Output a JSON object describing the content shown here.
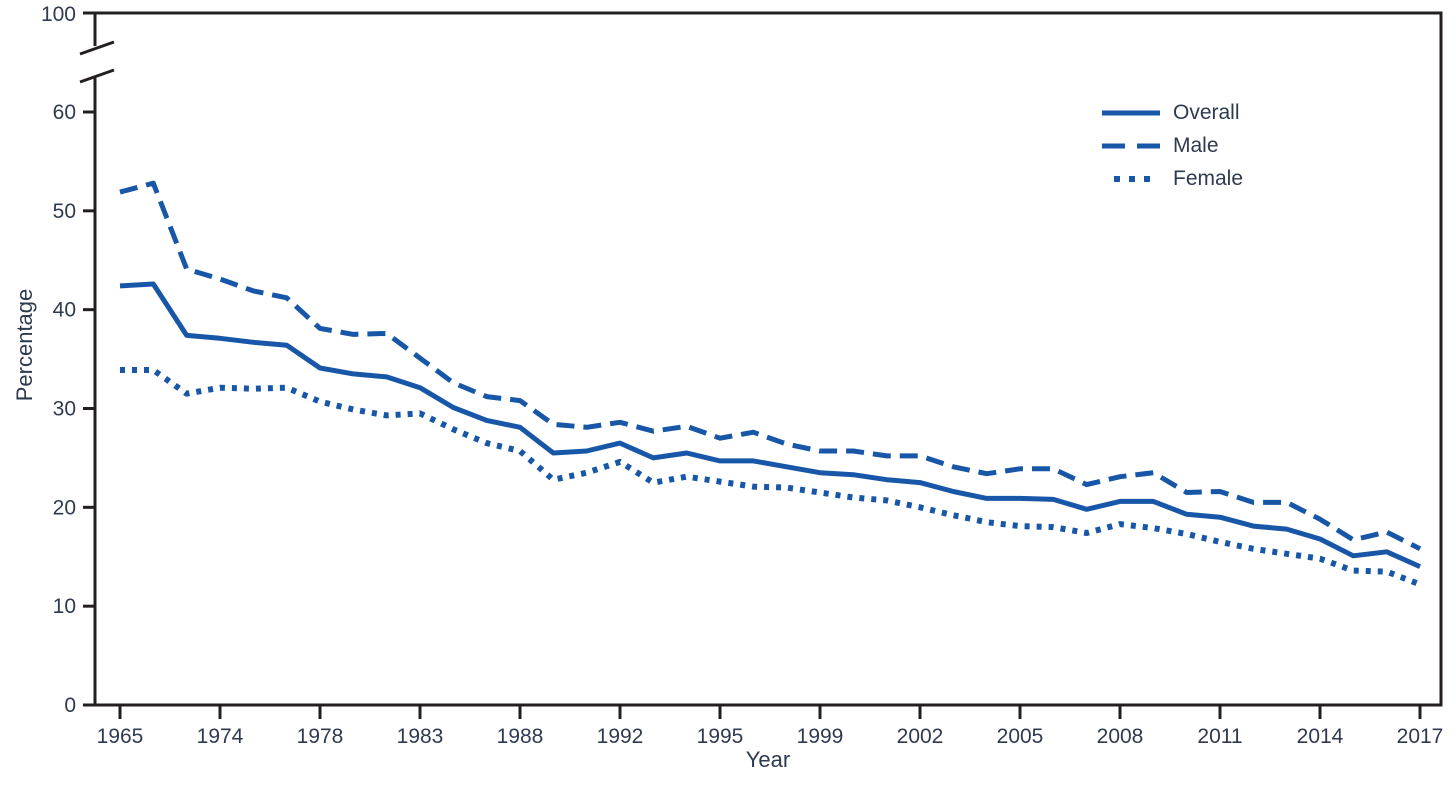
{
  "chart_data": {
    "type": "line",
    "title": "",
    "xlabel": "Year",
    "ylabel": "Percentage",
    "grid": false,
    "legend_position": "upper-right-inside",
    "ylim": [
      0,
      100
    ],
    "y_ticks": [
      0,
      10,
      20,
      30,
      40,
      50,
      60
    ],
    "y_axis_break": {
      "between": [
        60,
        100
      ],
      "top_label": "100"
    },
    "x_points_evenly_spaced": true,
    "x": [
      1965,
      1966,
      1970,
      1974,
      1976,
      1977,
      1978,
      1979,
      1980,
      1983,
      1985,
      1987,
      1988,
      1990,
      1991,
      1992,
      1993,
      1994,
      1995,
      1997,
      1998,
      1999,
      2000,
      2001,
      2002,
      2003,
      2004,
      2005,
      2006,
      2007,
      2008,
      2009,
      2010,
      2011,
      2012,
      2013,
      2014,
      2015,
      2016,
      2017
    ],
    "x_tick_indices": [
      0,
      3,
      6,
      9,
      12,
      15,
      18,
      21,
      24,
      27,
      30,
      33,
      36,
      39
    ],
    "x_tick_labels": [
      "1965",
      "1974",
      "1978",
      "1983",
      "1988",
      "1992",
      "1995",
      "1999",
      "2002",
      "2005",
      "2008",
      "2011",
      "2014",
      "2017"
    ],
    "series": [
      {
        "name": "Overall",
        "line_style": "solid",
        "values": [
          42.4,
          42.6,
          37.4,
          37.1,
          36.7,
          36.4,
          34.1,
          33.5,
          33.2,
          32.1,
          30.1,
          28.8,
          28.1,
          25.5,
          25.7,
          26.5,
          25.0,
          25.5,
          24.7,
          24.7,
          24.1,
          23.5,
          23.3,
          22.8,
          22.5,
          21.6,
          20.9,
          20.9,
          20.8,
          19.8,
          20.6,
          20.6,
          19.3,
          19.0,
          18.1,
          17.8,
          16.8,
          15.1,
          15.5,
          14.0
        ]
      },
      {
        "name": "Male",
        "line_style": "dashed",
        "values": [
          51.9,
          52.8,
          44.1,
          43.1,
          41.9,
          41.2,
          38.1,
          37.5,
          37.6,
          35.1,
          32.6,
          31.2,
          30.8,
          28.4,
          28.1,
          28.6,
          27.7,
          28.2,
          27.0,
          27.6,
          26.4,
          25.7,
          25.7,
          25.2,
          25.2,
          24.1,
          23.4,
          23.9,
          23.9,
          22.3,
          23.1,
          23.5,
          21.5,
          21.6,
          20.5,
          20.5,
          18.8,
          16.7,
          17.5,
          15.8
        ]
      },
      {
        "name": "Female",
        "line_style": "dotted",
        "values": [
          33.9,
          33.9,
          31.5,
          32.1,
          32.0,
          32.1,
          30.7,
          29.9,
          29.3,
          29.5,
          27.9,
          26.5,
          25.7,
          22.8,
          23.5,
          24.6,
          22.5,
          23.1,
          22.6,
          22.1,
          22.0,
          21.5,
          21.0,
          20.7,
          20.0,
          19.2,
          18.5,
          18.1,
          18.0,
          17.4,
          18.3,
          17.9,
          17.3,
          16.5,
          15.8,
          15.3,
          14.8,
          13.6,
          13.5,
          12.2
        ]
      }
    ],
    "colors": {
      "line": "#1857a8",
      "axis": "#231f20",
      "text": "#2e3b4e",
      "background": "#ffffff"
    }
  }
}
